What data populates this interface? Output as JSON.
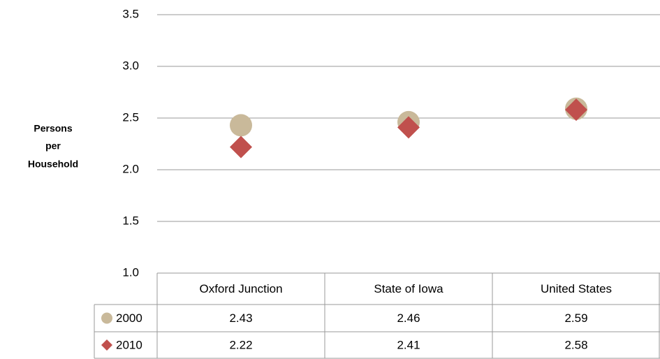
{
  "chart_data": {
    "type": "dot",
    "y_label": [
      "Persons",
      "per",
      "Household"
    ],
    "categories": [
      "Oxford Junction",
      "State of Iowa",
      "United States"
    ],
    "series": [
      {
        "name": "2000",
        "color": "#c9b99a",
        "marker": "circle",
        "values": [
          2.43,
          2.46,
          2.59
        ]
      },
      {
        "name": "2010",
        "color": "#c0504d",
        "marker": "diamond",
        "values": [
          2.22,
          2.41,
          2.58
        ]
      }
    ],
    "ylim": [
      1.0,
      3.5
    ],
    "yticks": [
      {
        "value": 1.0,
        "label": "1.0"
      },
      1.5,
      {
        "value": 2.0,
        "label": "2.0"
      },
      2.5,
      {
        "value": 3.0,
        "label": "3.0"
      },
      3.5
    ],
    "grid": true,
    "data_table": true
  }
}
